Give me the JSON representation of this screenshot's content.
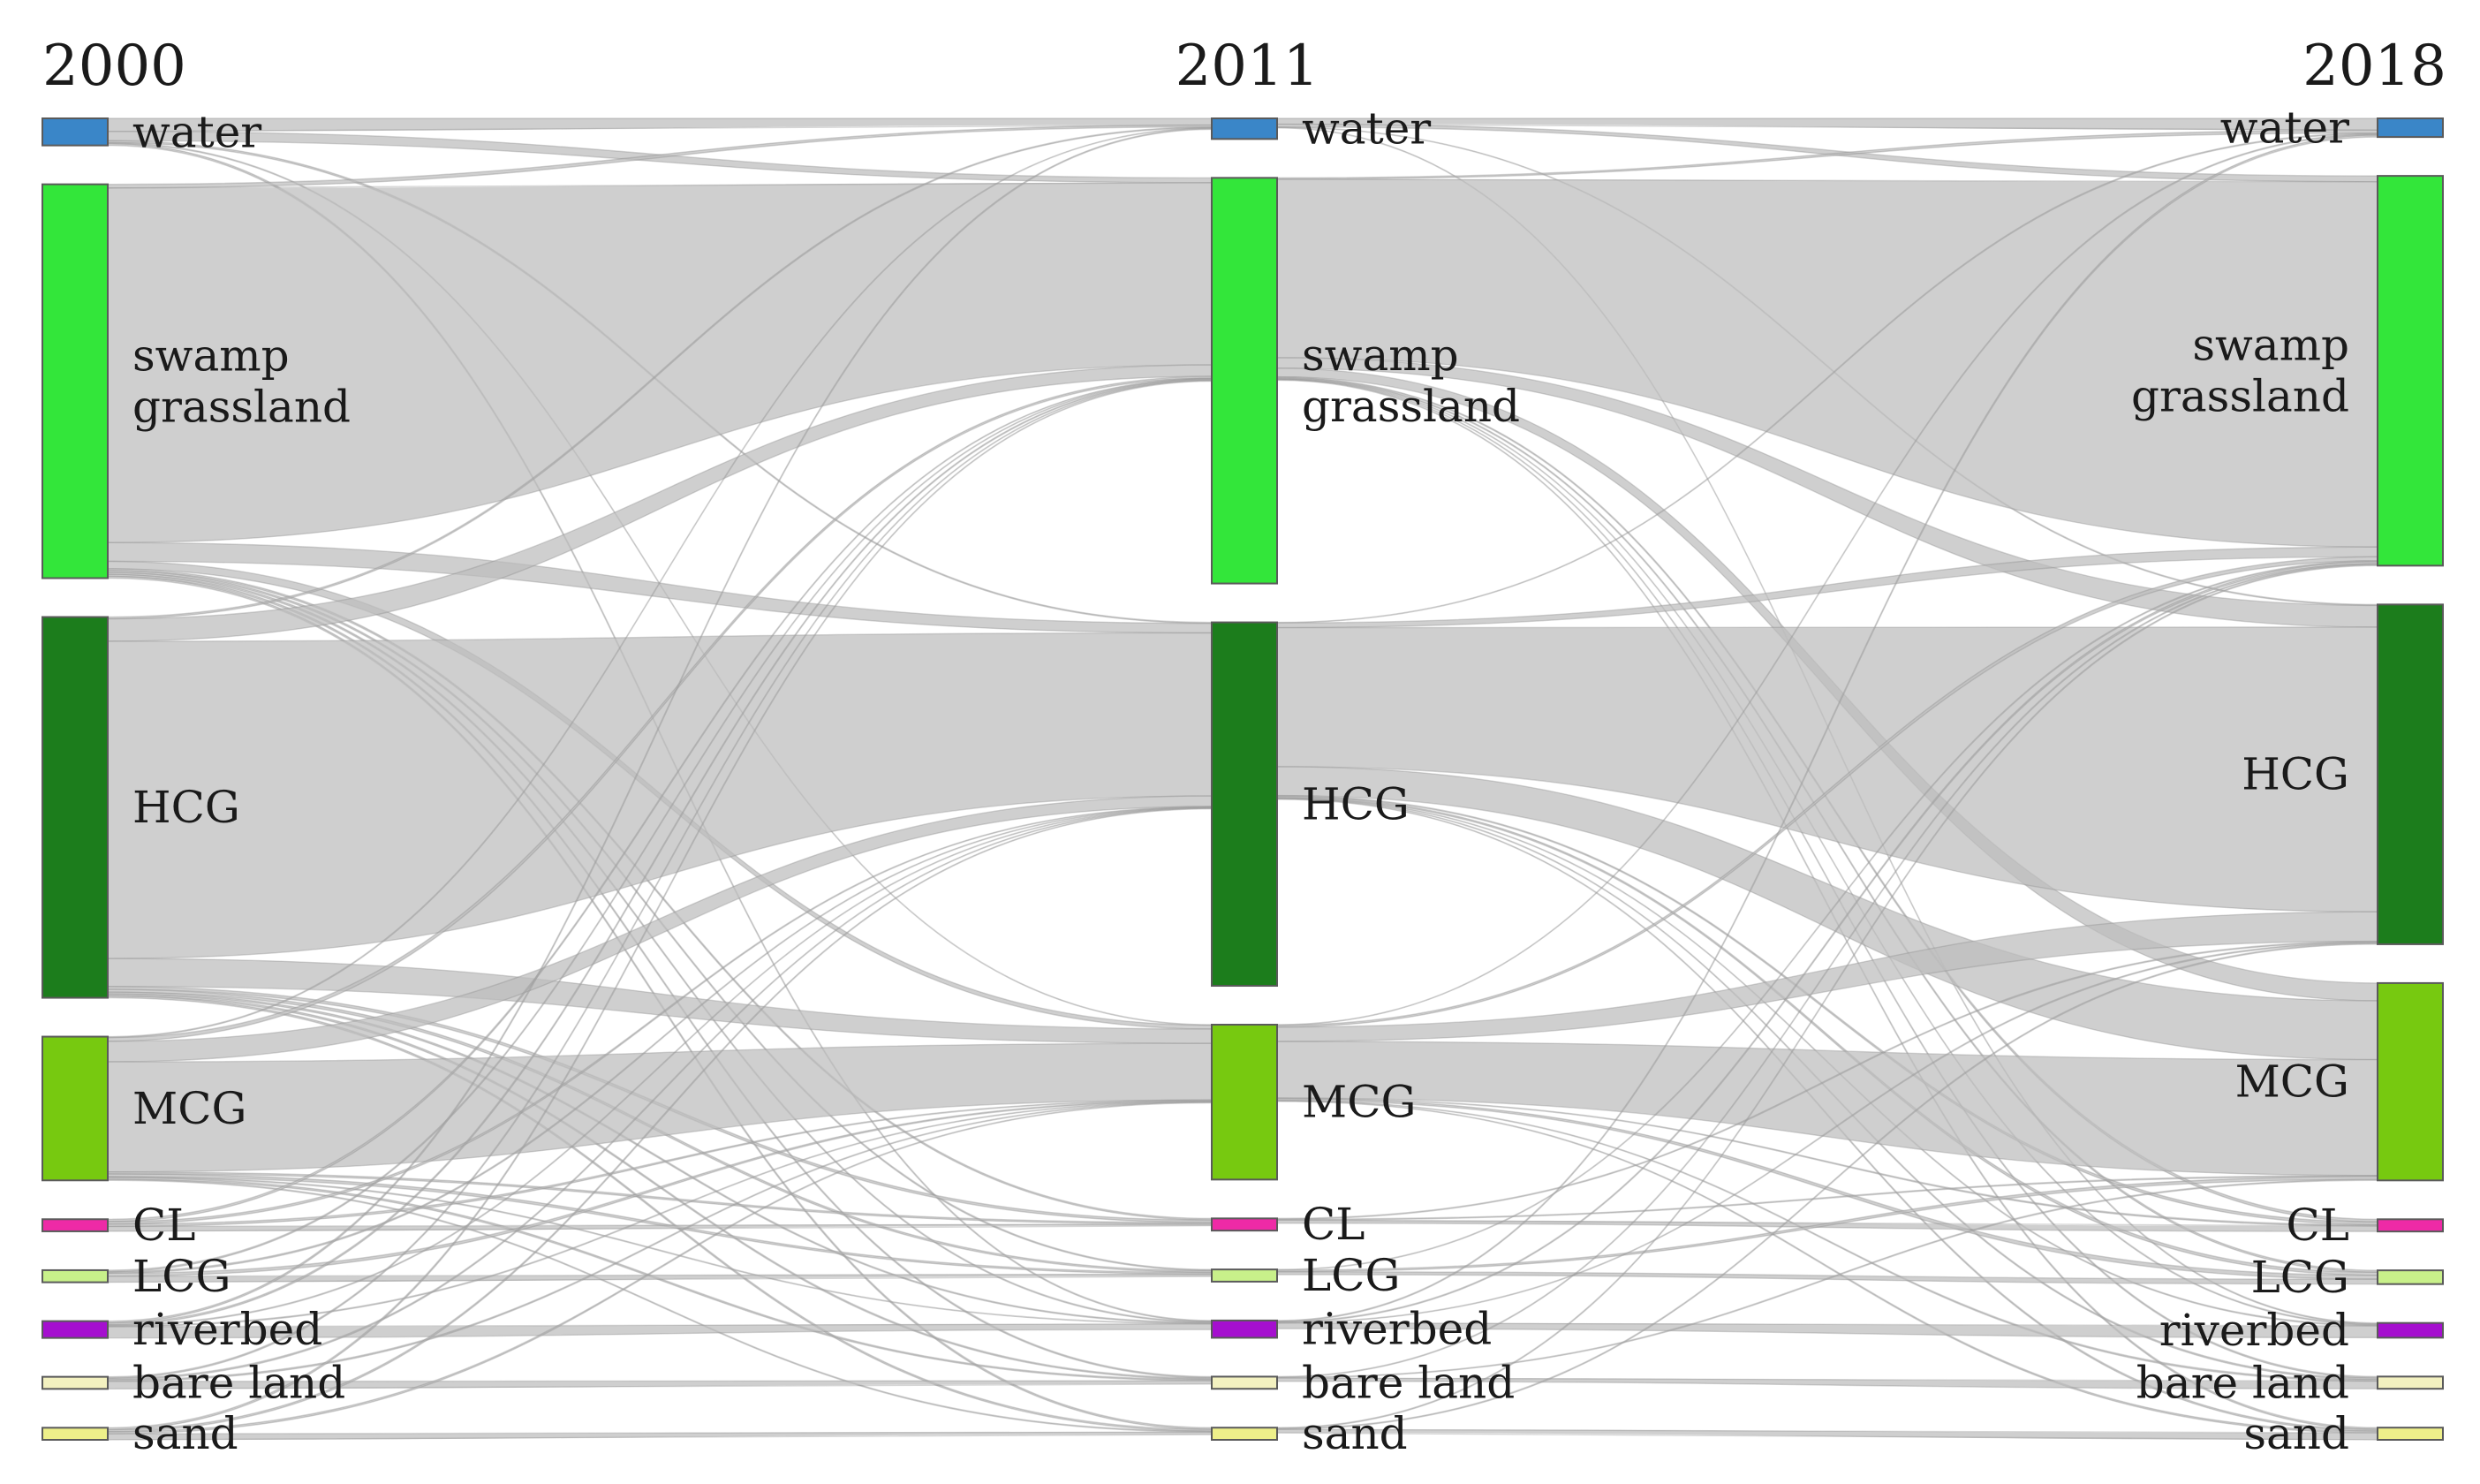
{
  "years": [
    "2000",
    "2011",
    "2018"
  ],
  "categories": [
    {
      "key": "water",
      "lines": [
        "water"
      ],
      "color": "#3a86c8"
    },
    {
      "key": "swamp",
      "lines": [
        "swamp",
        "grassland"
      ],
      "color": "#33e63a"
    },
    {
      "key": "hcg",
      "lines": [
        "HCG"
      ],
      "color": "#1c7d1c"
    },
    {
      "key": "mcg",
      "lines": [
        "MCG"
      ],
      "color": "#77c910"
    },
    {
      "key": "cl",
      "lines": [
        "CL"
      ],
      "color": "#ee2aa6"
    },
    {
      "key": "lcg",
      "lines": [
        "LCG"
      ],
      "color": "#c8f08a"
    },
    {
      "key": "riverbed",
      "lines": [
        "riverbed"
      ],
      "color": "#a50fcf"
    },
    {
      "key": "bare",
      "lines": [
        "bare land"
      ],
      "color": "#f3f1c0"
    },
    {
      "key": "sand",
      "lines": [
        "sand"
      ],
      "color": "#eef08a"
    }
  ],
  "flows": [
    {
      "from_year": "2000",
      "to_year": "2011",
      "links": [
        {
          "from": "water",
          "to": "water",
          "value": 14
        },
        {
          "from": "water",
          "to": "swamp",
          "value": 10
        },
        {
          "from": "water",
          "to": "hcg",
          "value": 2
        },
        {
          "from": "water",
          "to": "mcg",
          "value": 1
        },
        {
          "from": "water",
          "to": "riverbed",
          "value": 2
        },
        {
          "from": "swamp",
          "to": "water",
          "value": 4
        },
        {
          "from": "swamp",
          "to": "swamp",
          "value": 380
        },
        {
          "from": "swamp",
          "to": "hcg",
          "value": 20
        },
        {
          "from": "swamp",
          "to": "mcg",
          "value": 8
        },
        {
          "from": "swamp",
          "to": "cl",
          "value": 2
        },
        {
          "from": "swamp",
          "to": "lcg",
          "value": 2
        },
        {
          "from": "swamp",
          "to": "riverbed",
          "value": 2
        },
        {
          "from": "swamp",
          "to": "bare",
          "value": 2
        },
        {
          "from": "swamp",
          "to": "sand",
          "value": 2
        },
        {
          "from": "hcg",
          "to": "water",
          "value": 2
        },
        {
          "from": "hcg",
          "to": "swamp",
          "value": 24
        },
        {
          "from": "hcg",
          "to": "hcg",
          "value": 340
        },
        {
          "from": "hcg",
          "to": "mcg",
          "value": 30
        },
        {
          "from": "hcg",
          "to": "cl",
          "value": 3
        },
        {
          "from": "hcg",
          "to": "lcg",
          "value": 3
        },
        {
          "from": "hcg",
          "to": "riverbed",
          "value": 2
        },
        {
          "from": "hcg",
          "to": "bare",
          "value": 2
        },
        {
          "from": "hcg",
          "to": "sand",
          "value": 2
        },
        {
          "from": "mcg",
          "to": "water",
          "value": 1
        },
        {
          "from": "mcg",
          "to": "swamp",
          "value": 4
        },
        {
          "from": "mcg",
          "to": "hcg",
          "value": 22
        },
        {
          "from": "mcg",
          "to": "mcg",
          "value": 118
        },
        {
          "from": "mcg",
          "to": "lcg",
          "value": 3
        },
        {
          "from": "mcg",
          "to": "cl",
          "value": 2
        },
        {
          "from": "mcg",
          "to": "riverbed",
          "value": 1
        },
        {
          "from": "mcg",
          "to": "bare",
          "value": 2
        },
        {
          "from": "mcg",
          "to": "sand",
          "value": 1
        },
        {
          "from": "cl",
          "to": "swamp",
          "value": 1
        },
        {
          "from": "cl",
          "to": "hcg",
          "value": 1
        },
        {
          "from": "cl",
          "to": "mcg",
          "value": 1
        },
        {
          "from": "cl",
          "to": "cl",
          "value": 2
        },
        {
          "from": "lcg",
          "to": "hcg",
          "value": 1
        },
        {
          "from": "lcg",
          "to": "mcg",
          "value": 2
        },
        {
          "from": "lcg",
          "to": "lcg",
          "value": 4
        },
        {
          "from": "lcg",
          "to": "swamp",
          "value": 1
        },
        {
          "from": "riverbed",
          "to": "water",
          "value": 2
        },
        {
          "from": "riverbed",
          "to": "swamp",
          "value": 2
        },
        {
          "from": "riverbed",
          "to": "hcg",
          "value": 1
        },
        {
          "from": "riverbed",
          "to": "mcg",
          "value": 1
        },
        {
          "from": "riverbed",
          "to": "riverbed",
          "value": 12
        },
        {
          "from": "bare",
          "to": "swamp",
          "value": 1
        },
        {
          "from": "bare",
          "to": "hcg",
          "value": 1
        },
        {
          "from": "bare",
          "to": "mcg",
          "value": 1
        },
        {
          "from": "bare",
          "to": "bare",
          "value": 5
        },
        {
          "from": "sand",
          "to": "swamp",
          "value": 1
        },
        {
          "from": "sand",
          "to": "hcg",
          "value": 1
        },
        {
          "from": "sand",
          "to": "mcg",
          "value": 1
        },
        {
          "from": "sand",
          "to": "sand",
          "value": 3
        }
      ]
    },
    {
      "from_year": "2011",
      "to_year": "2018",
      "links": [
        {
          "from": "water",
          "to": "water",
          "value": 12
        },
        {
          "from": "water",
          "to": "swamp",
          "value": 6
        },
        {
          "from": "water",
          "to": "hcg",
          "value": 1
        },
        {
          "from": "water",
          "to": "riverbed",
          "value": 1
        },
        {
          "from": "swamp",
          "to": "water",
          "value": 3
        },
        {
          "from": "swamp",
          "to": "swamp",
          "value": 372
        },
        {
          "from": "swamp",
          "to": "hcg",
          "value": 22
        },
        {
          "from": "swamp",
          "to": "mcg",
          "value": 18
        },
        {
          "from": "swamp",
          "to": "cl",
          "value": 2
        },
        {
          "from": "swamp",
          "to": "lcg",
          "value": 2
        },
        {
          "from": "swamp",
          "to": "riverbed",
          "value": 1
        },
        {
          "from": "swamp",
          "to": "bare",
          "value": 1
        },
        {
          "from": "swamp",
          "to": "sand",
          "value": 1
        },
        {
          "from": "hcg",
          "to": "water",
          "value": 1
        },
        {
          "from": "hcg",
          "to": "swamp",
          "value": 10
        },
        {
          "from": "hcg",
          "to": "hcg",
          "value": 290
        },
        {
          "from": "hcg",
          "to": "mcg",
          "value": 60
        },
        {
          "from": "hcg",
          "to": "cl",
          "value": 2
        },
        {
          "from": "hcg",
          "to": "lcg",
          "value": 3
        },
        {
          "from": "hcg",
          "to": "riverbed",
          "value": 1
        },
        {
          "from": "hcg",
          "to": "bare",
          "value": 1
        },
        {
          "from": "hcg",
          "to": "sand",
          "value": 1
        },
        {
          "from": "mcg",
          "to": "water",
          "value": 1
        },
        {
          "from": "mcg",
          "to": "swamp",
          "value": 4
        },
        {
          "from": "mcg",
          "to": "hcg",
          "value": 30
        },
        {
          "from": "mcg",
          "to": "mcg",
          "value": 118
        },
        {
          "from": "mcg",
          "to": "lcg",
          "value": 4
        },
        {
          "from": "mcg",
          "to": "cl",
          "value": 1
        },
        {
          "from": "mcg",
          "to": "bare",
          "value": 1
        },
        {
          "from": "mcg",
          "to": "sand",
          "value": 1
        },
        {
          "from": "cl",
          "to": "hcg",
          "value": 1
        },
        {
          "from": "cl",
          "to": "mcg",
          "value": 1
        },
        {
          "from": "cl",
          "to": "cl",
          "value": 4
        },
        {
          "from": "lcg",
          "to": "mcg",
          "value": 3
        },
        {
          "from": "lcg",
          "to": "lcg",
          "value": 5
        },
        {
          "from": "lcg",
          "to": "swamp",
          "value": 1
        },
        {
          "from": "riverbed",
          "to": "water",
          "value": 2
        },
        {
          "from": "riverbed",
          "to": "swamp",
          "value": 2
        },
        {
          "from": "riverbed",
          "to": "riverbed",
          "value": 12
        },
        {
          "from": "riverbed",
          "to": "hcg",
          "value": 1
        },
        {
          "from": "bare",
          "to": "swamp",
          "value": 1
        },
        {
          "from": "bare",
          "to": "mcg",
          "value": 1
        },
        {
          "from": "bare",
          "to": "bare",
          "value": 5
        },
        {
          "from": "sand",
          "to": "swamp",
          "value": 1
        },
        {
          "from": "sand",
          "to": "hcg",
          "value": 1
        },
        {
          "from": "sand",
          "to": "sand",
          "value": 4
        }
      ]
    }
  ]
}
